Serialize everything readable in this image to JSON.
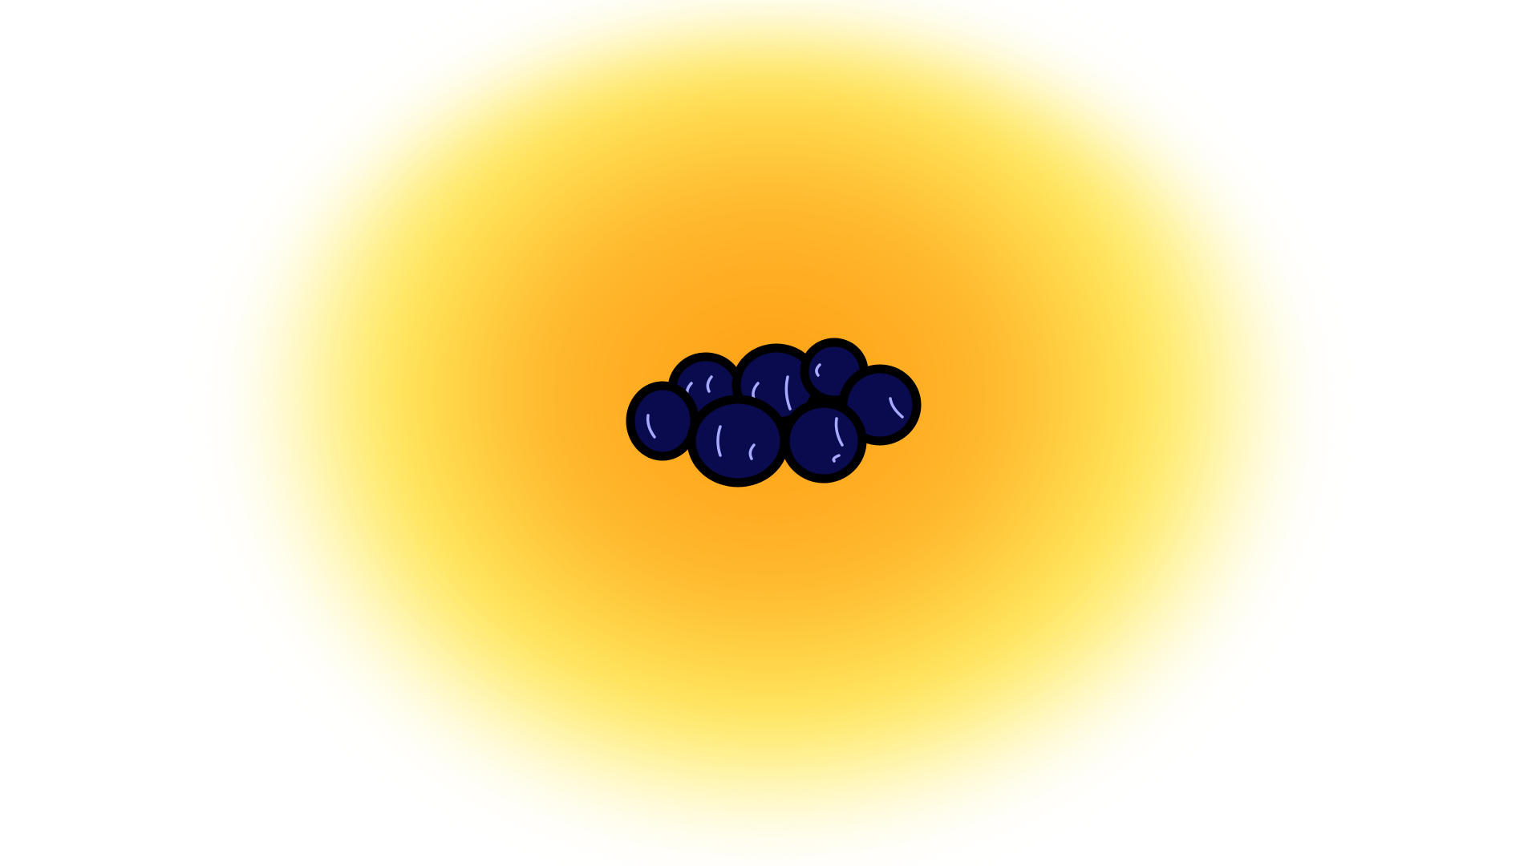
{
  "scene": {
    "subject": "blueberry-cluster-icon",
    "background_color": "#ffffff",
    "glow_colors": {
      "center": "#ff9e12",
      "mid": "#ffb62c",
      "outer": "#ffe85a",
      "edge": "#fff8c0"
    },
    "berry_fill": "#0a0a4e",
    "berry_outline": "#000000",
    "highlight_color": "#a8a8ff"
  }
}
